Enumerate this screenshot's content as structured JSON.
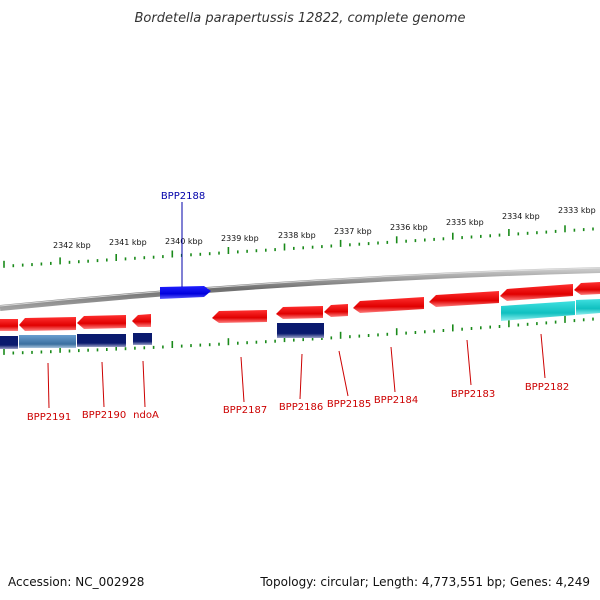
{
  "title": "Bordetella parapertussis 12822, complete genome",
  "footer": {
    "accession": "Accession: NC_002928",
    "topology": "Topology: circular; Length: 4,773,551 bp; Genes: 4,249"
  },
  "colors": {
    "backbone": "#8c8c8c",
    "tick": "#1a8a1a",
    "forward_gene": "#0000ee",
    "reverse_gene": "#ee0000",
    "label_forward": "#0000aa",
    "label_reverse": "#cc0000",
    "feature_dark": "#0a1a6e",
    "feature_steel": "#4a7fb0",
    "feature_cyan": "#14c3c3"
  },
  "ticks": [
    {
      "label": "2342 kbp"
    },
    {
      "label": "2341 kbp"
    },
    {
      "label": "2340 kbp"
    },
    {
      "label": "2339 kbp"
    },
    {
      "label": "2338 kbp"
    },
    {
      "label": "2337 kbp"
    },
    {
      "label": "2336 kbp"
    },
    {
      "label": "2335 kbp"
    },
    {
      "label": "2334 kbp"
    },
    {
      "label": "2333 kbp"
    }
  ],
  "genes": [
    {
      "name": "BPP2188",
      "strand": "forward"
    },
    {
      "name": "BPP2191",
      "strand": "reverse"
    },
    {
      "name": "BPP2190",
      "strand": "reverse"
    },
    {
      "name": "ndoA",
      "strand": "reverse"
    },
    {
      "name": "BPP2187",
      "strand": "reverse"
    },
    {
      "name": "BPP2186",
      "strand": "reverse"
    },
    {
      "name": "BPP2185",
      "strand": "reverse"
    },
    {
      "name": "BPP2184",
      "strand": "reverse"
    },
    {
      "name": "BPP2183",
      "strand": "reverse"
    },
    {
      "name": "BPP2182",
      "strand": "reverse"
    }
  ]
}
